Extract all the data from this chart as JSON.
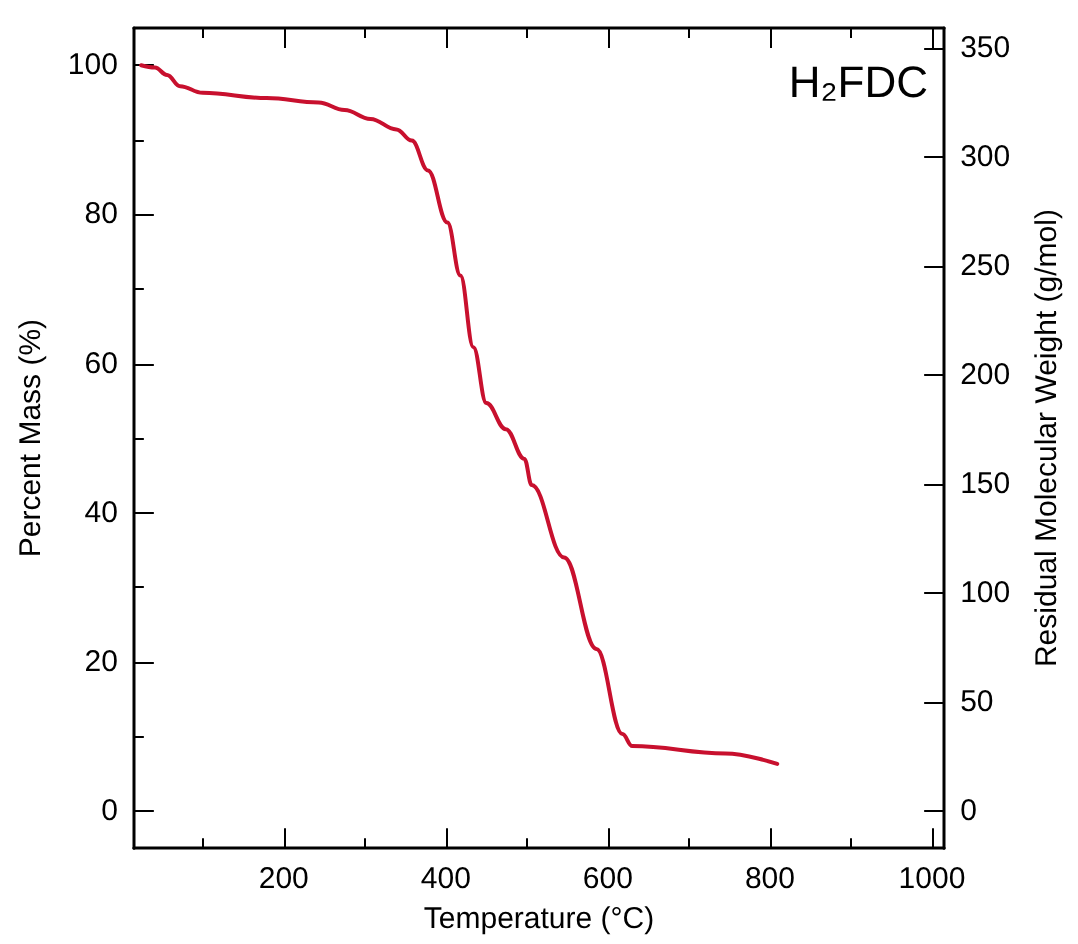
{
  "chart_data": {
    "type": "line",
    "xlabel": "Temperature (°C)",
    "ylabel": "Percent Mass (%)",
    "y2label": "Residual Molecular Weight (g/mol)",
    "annotations": [
      "H₂FDC"
    ],
    "series": [
      {
        "color": "#c8102e",
        "x": [
          24,
          41,
          56,
          72,
          100,
          179,
          243,
          275,
          307,
          339,
          358,
          378,
          402,
          418,
          434,
          450,
          474,
          497,
          506,
          546,
          586,
          618,
          630,
          745,
          809
        ],
        "values": [
          100,
          99.7,
          98.7,
          97.2,
          96.3,
          95.6,
          95.0,
          94.0,
          92.8,
          91.4,
          89.9,
          85.9,
          78.9,
          71.8,
          62.2,
          54.7,
          51.2,
          47.2,
          43.7,
          34.0,
          21.7,
          10.3,
          8.7,
          7.7,
          6.3
        ]
      }
    ],
    "xlim": [
      15,
      1015
    ],
    "ylim": [
      -5,
      105
    ],
    "y2lim": [
      -17,
      359
    ],
    "xticks": [
      {
        "value": 100,
        "label": null
      },
      200,
      {
        "value": 300,
        "label": null
      },
      400,
      {
        "value": 500,
        "label": null
      },
      600,
      {
        "value": 700,
        "label": null
      },
      800,
      {
        "value": 900,
        "label": null
      },
      1000
    ],
    "yticks": [
      0,
      {
        "value": 10,
        "label": null
      },
      20,
      {
        "value": 30,
        "label": null
      },
      40,
      {
        "value": 50,
        "label": null
      },
      60,
      {
        "value": 70,
        "label": null
      },
      80,
      {
        "value": 90,
        "label": null
      },
      100
    ],
    "y2ticks": [
      0,
      50,
      100,
      150,
      200,
      250,
      300,
      350
    ],
    "grid": false,
    "marker": "none",
    "line_style": "solid"
  }
}
